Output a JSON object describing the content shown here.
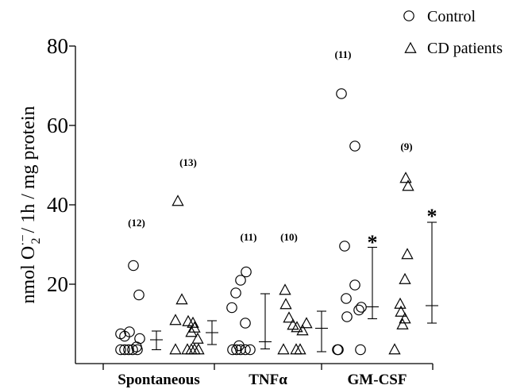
{
  "chart_data": {
    "type": "scatter",
    "ylabel": "nmol O2·− / 1h / mg protein",
    "ylabel_parts": {
      "pre": "nmol O",
      "sup": "·−",
      "sub": "2",
      "post": " / 1h / mg protein"
    },
    "ylim": [
      0,
      80
    ],
    "yticks": [
      "20",
      "40",
      "60",
      "80"
    ],
    "categories": [
      "Spontaneous",
      "TNFα",
      "GM-CSF"
    ],
    "legend": {
      "position": "top-right",
      "entries": [
        {
          "marker": "circle",
          "label": "Control"
        },
        {
          "marker": "triangle",
          "label": "CD patients"
        }
      ]
    },
    "series": [
      {
        "name": "Control",
        "marker": "circle",
        "groups": [
          {
            "category": "Spontaneous",
            "n_label": "(12)",
            "values": [
              24.7,
              17.3,
              8,
              7.5,
              6.9,
              6.3,
              4.2,
              3.5,
              3.5,
              3.5,
              3.5,
              3.5
            ],
            "mean": 6.0,
            "sd_low": 3.5,
            "sd_high": 8.2
          },
          {
            "category": "TNFα",
            "n_label": "(11)",
            "values": [
              23.1,
              21,
              17.8,
              14.1,
              10.2,
              4.5,
              3.5,
              3.5,
              3.5,
              3.5,
              3.5
            ],
            "mean": 5.5,
            "sd_low": 3.7,
            "sd_high": 17.6
          },
          {
            "category": "GM-CSF",
            "n_label": "(11)",
            "significant": true,
            "values": [
              68,
              54.8,
              29.6,
              19.8,
              16.4,
              14.2,
              13.5,
              11.8,
              3.5,
              3.5,
              3.5
            ],
            "mean": 14.3,
            "sd_low": 11.3,
            "sd_high": 29.3
          }
        ]
      },
      {
        "name": "CD patients",
        "marker": "triangle",
        "groups": [
          {
            "category": "Spontaneous",
            "n_label": "(13)",
            "values": [
              40.9,
              16.1,
              10.9,
              10.2,
              10.6,
              9,
              7.9,
              6.2,
              3.5,
              3.5,
              3.5,
              3.5,
              3.5
            ],
            "mean": 7.8,
            "sd_low": 4.8,
            "sd_high": 10.8
          },
          {
            "category": "TNFα",
            "n_label": "(10)",
            "values": [
              18.5,
              14.9,
              11.5,
              10.1,
              9.7,
              9.1,
              8.3,
              3.5,
              3.5,
              3.5
            ],
            "mean": 8.9,
            "sd_low": 3.0,
            "sd_high": 13.2
          },
          {
            "category": "GM-CSF",
            "n_label": "(9)",
            "significant": true,
            "values": [
              46.7,
              44.7,
              27.5,
              21.2,
              15,
              13,
              11.3,
              9.8,
              3.5
            ],
            "mean": 14.6,
            "sd_low": 10.2,
            "sd_high": 35.6
          }
        ]
      }
    ],
    "significance_marker": "*"
  }
}
